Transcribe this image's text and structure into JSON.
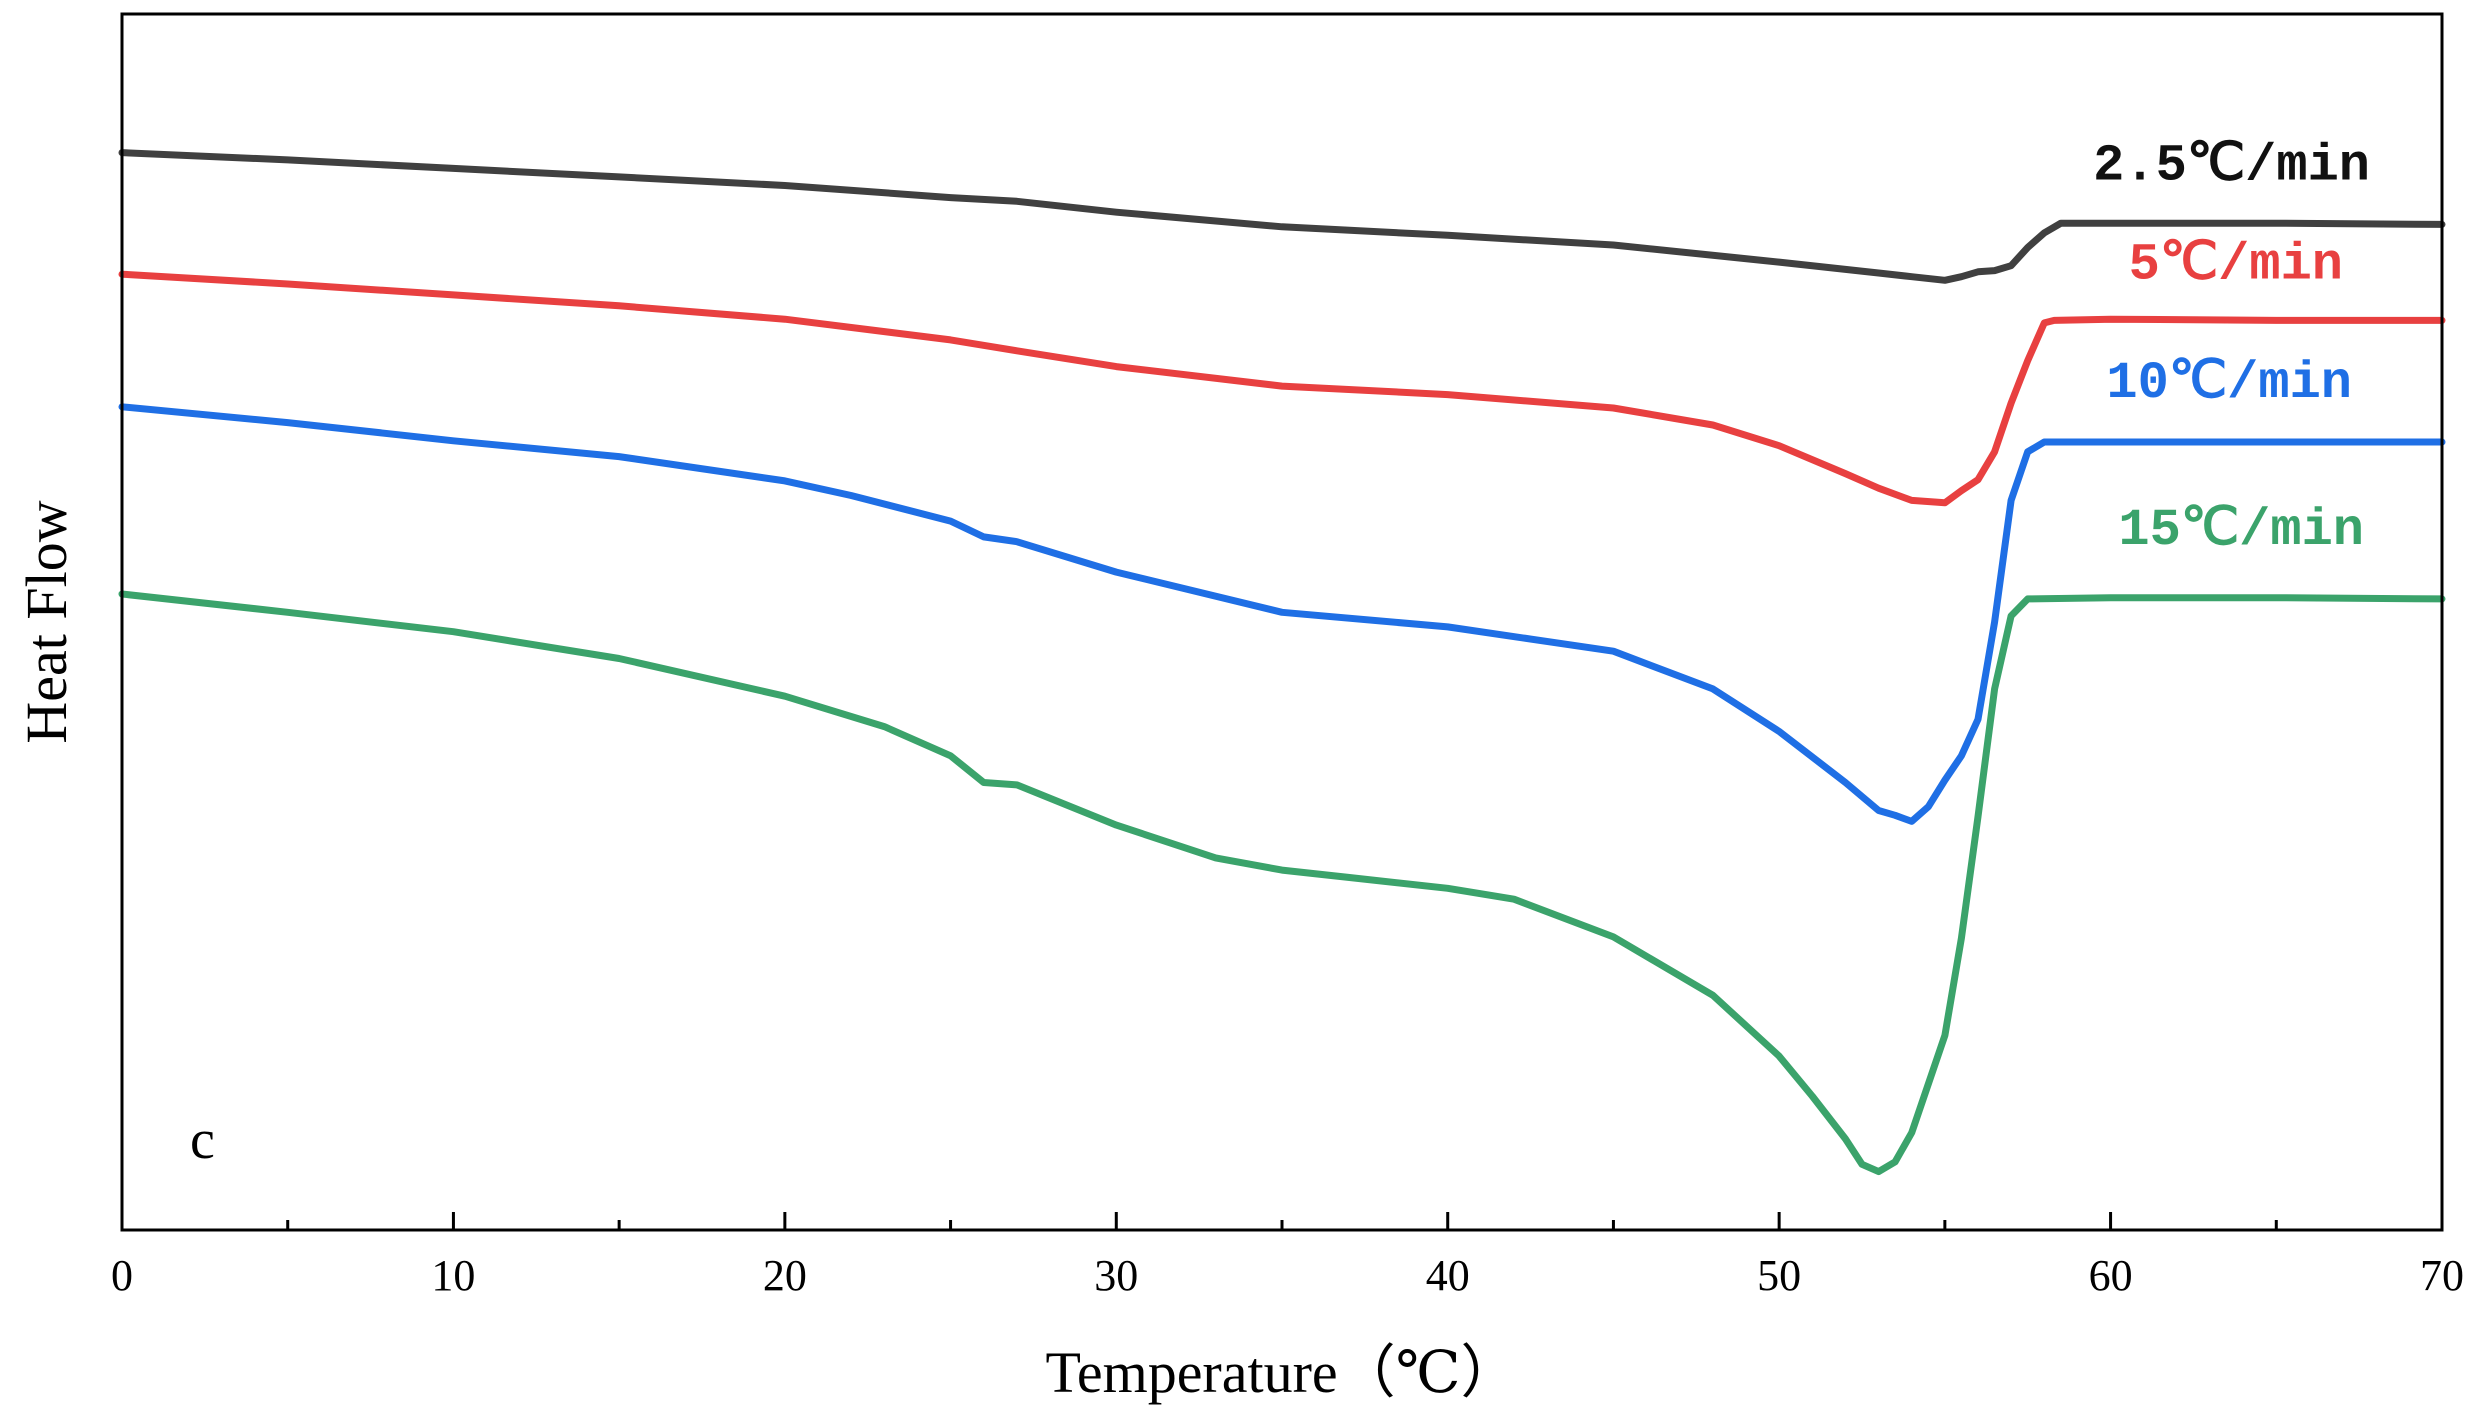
{
  "chart_data": {
    "type": "line",
    "title": "",
    "xlabel": "Temperature（℃）",
    "ylabel": "Heat Flow",
    "xlim": [
      0,
      70
    ],
    "ylim": [
      0,
      100
    ],
    "xticks": [
      "0",
      "10",
      "20",
      "30",
      "40",
      "50",
      "60",
      "70"
    ],
    "yticks": [],
    "grid": false,
    "panel_label": "c",
    "series": [
      {
        "name": "2.5℃/min",
        "color": "#404040",
        "points": [
          [
            0,
            88.6
          ],
          [
            5,
            88.0
          ],
          [
            10,
            87.3
          ],
          [
            15,
            86.6
          ],
          [
            20,
            85.9
          ],
          [
            25,
            84.9
          ],
          [
            27,
            84.6
          ],
          [
            30,
            83.7
          ],
          [
            35,
            82.5
          ],
          [
            40,
            81.8
          ],
          [
            45,
            81.0
          ],
          [
            50,
            79.6
          ],
          [
            53,
            78.7
          ],
          [
            54,
            78.4
          ],
          [
            55,
            78.1
          ],
          [
            55.5,
            78.4
          ],
          [
            56,
            78.8
          ],
          [
            56.5,
            78.9
          ],
          [
            57,
            79.3
          ],
          [
            57.5,
            80.8
          ],
          [
            58,
            82.0
          ],
          [
            58.5,
            82.8
          ],
          [
            60,
            82.8
          ],
          [
            65,
            82.8
          ],
          [
            70,
            82.7
          ]
        ]
      },
      {
        "name": "5℃/min",
        "color": "#e84040",
        "points": [
          [
            0,
            78.6
          ],
          [
            5,
            77.8
          ],
          [
            10,
            76.9
          ],
          [
            15,
            76.0
          ],
          [
            20,
            74.9
          ],
          [
            25,
            73.2
          ],
          [
            27,
            72.3
          ],
          [
            30,
            71.0
          ],
          [
            35,
            69.4
          ],
          [
            40,
            68.7
          ],
          [
            45,
            67.6
          ],
          [
            48,
            66.2
          ],
          [
            50,
            64.5
          ],
          [
            52,
            62.2
          ],
          [
            53,
            61.0
          ],
          [
            54,
            60.0
          ],
          [
            55,
            59.8
          ],
          [
            55.5,
            60.8
          ],
          [
            56,
            61.7
          ],
          [
            56.5,
            64.0
          ],
          [
            57,
            68.0
          ],
          [
            57.5,
            71.5
          ],
          [
            58,
            74.6
          ],
          [
            58.3,
            74.8
          ],
          [
            60,
            74.9
          ],
          [
            65,
            74.8
          ],
          [
            70,
            74.8
          ]
        ]
      },
      {
        "name": "10℃/min",
        "color": "#1f6fe5",
        "points": [
          [
            0,
            67.7
          ],
          [
            5,
            66.4
          ],
          [
            10,
            64.9
          ],
          [
            15,
            63.6
          ],
          [
            20,
            61.6
          ],
          [
            22,
            60.4
          ],
          [
            25,
            58.3
          ],
          [
            26,
            57.0
          ],
          [
            27,
            56.6
          ],
          [
            30,
            54.1
          ],
          [
            35,
            50.8
          ],
          [
            40,
            49.6
          ],
          [
            45,
            47.6
          ],
          [
            48,
            44.5
          ],
          [
            50,
            41.0
          ],
          [
            52,
            36.8
          ],
          [
            53,
            34.5
          ],
          [
            53.5,
            34.1
          ],
          [
            54,
            33.6
          ],
          [
            54.5,
            34.8
          ],
          [
            55,
            37.0
          ],
          [
            55.5,
            39.0
          ],
          [
            56,
            42.0
          ],
          [
            56.5,
            50.0
          ],
          [
            57,
            60.0
          ],
          [
            57.5,
            64.0
          ],
          [
            58,
            64.8
          ],
          [
            60,
            64.8
          ],
          [
            65,
            64.8
          ],
          [
            70,
            64.8
          ]
        ]
      },
      {
        "name": "15℃/min",
        "color": "#3ba36b",
        "points": [
          [
            0,
            52.3
          ],
          [
            5,
            50.8
          ],
          [
            10,
            49.2
          ],
          [
            15,
            47.0
          ],
          [
            20,
            43.9
          ],
          [
            23,
            41.4
          ],
          [
            25,
            39.0
          ],
          [
            26,
            36.8
          ],
          [
            27,
            36.6
          ],
          [
            30,
            33.3
          ],
          [
            33,
            30.6
          ],
          [
            35,
            29.6
          ],
          [
            37,
            29.0
          ],
          [
            40,
            28.1
          ],
          [
            42,
            27.2
          ],
          [
            45,
            24.1
          ],
          [
            48,
            19.3
          ],
          [
            50,
            14.3
          ],
          [
            51,
            11.0
          ],
          [
            52,
            7.5
          ],
          [
            52.5,
            5.4
          ],
          [
            53,
            4.8
          ],
          [
            53.5,
            5.6
          ],
          [
            54,
            8.0
          ],
          [
            55,
            16.0
          ],
          [
            55.5,
            24.0
          ],
          [
            56,
            34.0
          ],
          [
            56.5,
            44.5
          ],
          [
            57,
            50.5
          ],
          [
            57.5,
            51.9
          ],
          [
            60,
            52.0
          ],
          [
            65,
            52.0
          ],
          [
            70,
            51.9
          ]
        ]
      }
    ]
  }
}
